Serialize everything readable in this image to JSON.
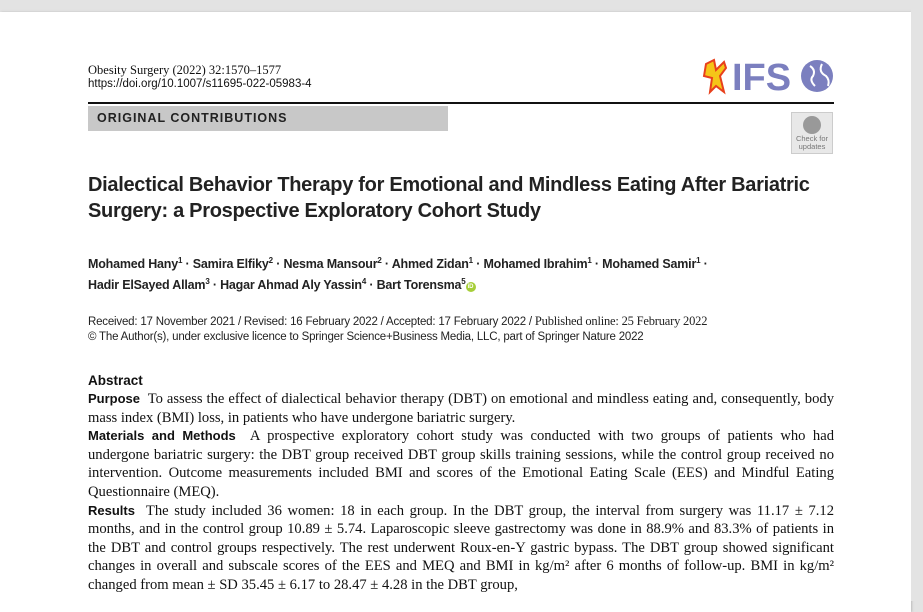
{
  "header": {
    "journal": "Obesity Surgery (2022) 32:1570–1577",
    "doi": "https://doi.org/10.1007/s11695-022-05983-4",
    "section": "ORIGINAL CONTRIBUTIONS",
    "logo_text": "IFSO",
    "check_updates": "Check for updates"
  },
  "title": "Dialectical Behavior Therapy for Emotional and Mindless Eating After Bariatric Surgery: a Prospective Exploratory Cohort Study",
  "authors": [
    {
      "name": "Mohamed Hany",
      "aff": "1"
    },
    {
      "name": "Samira Elfiky",
      "aff": "2"
    },
    {
      "name": "Nesma Mansour",
      "aff": "2"
    },
    {
      "name": "Ahmed Zidan",
      "aff": "1"
    },
    {
      "name": "Mohamed Ibrahim",
      "aff": "1"
    },
    {
      "name": "Mohamed Samir",
      "aff": "1"
    },
    {
      "name": "Hadir ElSayed Allam",
      "aff": "3"
    },
    {
      "name": "Hagar Ahmad Aly Yassin",
      "aff": "4"
    },
    {
      "name": "Bart Torensma",
      "aff": "5"
    }
  ],
  "dates": {
    "history": "Received: 17 November 2021 / Revised: 16 February 2022 / Accepted: 17 February 2022 / ",
    "published": "Published online: 25 February 2022",
    "copyright": "© The Author(s), under exclusive licence to Springer Science+Business Media, LLC, part of Springer Nature 2022"
  },
  "abstract": {
    "heading": "Abstract",
    "sections": [
      {
        "label": "Purpose",
        "text": "To assess the effect of dialectical behavior therapy (DBT) on emotional and mindless eating and, consequently, body mass index (BMI) loss, in patients who have undergone bariatric surgery."
      },
      {
        "label": "Materials and Methods",
        "text": "A prospective exploratory cohort study was conducted with two groups of patients who had undergone bariatric surgery: the DBT group received DBT group skills training sessions, while the control group received no intervention. Outcome measurements included BMI and scores of the Emotional Eating Scale (EES) and Mindful Eating Questionnaire (MEQ)."
      },
      {
        "label": "Results",
        "text": "The study included 36 women: 18 in each group. In the DBT group, the interval from surgery was 11.17 ± 7.12 months, and in the control group 10.89 ± 5.74. Laparoscopic sleeve gastrectomy was done in 88.9% and 83.3% of patients in the DBT and control groups respectively. The rest underwent Roux-en-Y gastric bypass. The DBT group showed significant changes in overall and subscale scores of the EES and MEQ and BMI in kg/m² after 6 months of follow-up. BMI in kg/m² changed from mean ± SD 35.45 ± 6.17 to 28.47 ± 4.28 in the DBT group,"
      }
    ]
  }
}
